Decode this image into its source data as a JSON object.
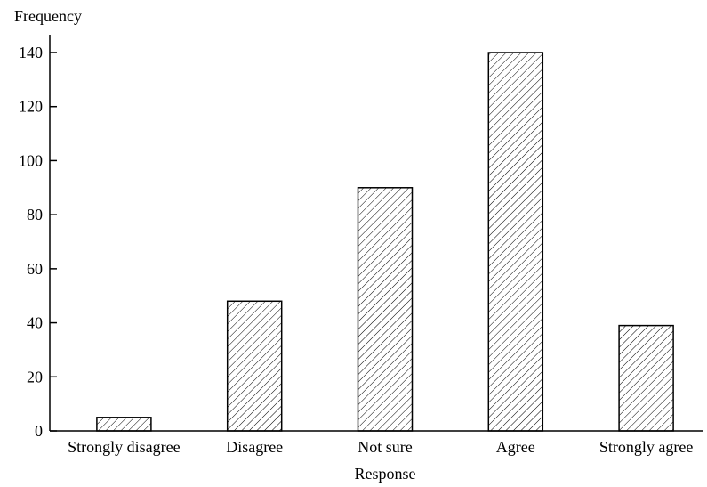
{
  "chart_data": {
    "type": "bar",
    "title": "",
    "xlabel": "Response",
    "ylabel": "Frequency",
    "categories": [
      "Strongly disagree",
      "Disagree",
      "Not sure",
      "Agree",
      "Strongly agree"
    ],
    "values": [
      5,
      48,
      90,
      140,
      39
    ],
    "ylim": [
      0,
      140
    ],
    "yticks": [
      0,
      20,
      40,
      60,
      80,
      100,
      120,
      140
    ],
    "grid": false,
    "bar_fill": "hatched",
    "colors": {
      "bar_stroke": "#000000",
      "hatch": "#000000",
      "background": "#ffffff"
    }
  }
}
